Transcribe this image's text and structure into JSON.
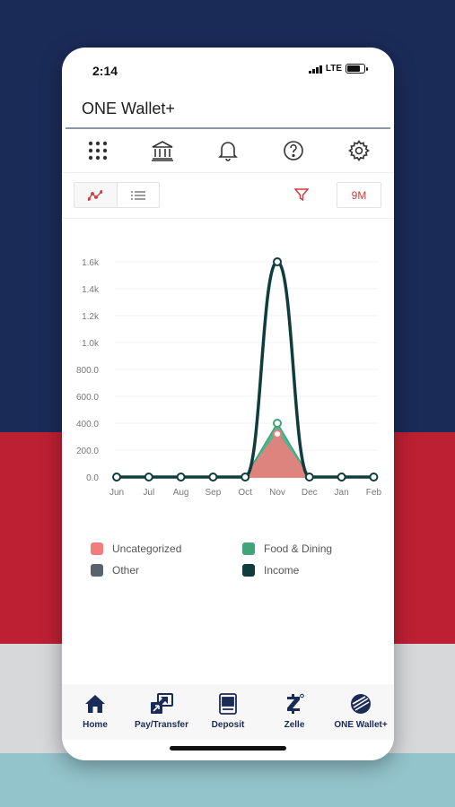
{
  "status_bar": {
    "time": "2:14",
    "network": "LTE"
  },
  "app": {
    "title": "ONE Wallet+"
  },
  "toolbar": {
    "icons": [
      "grid-icon",
      "bank-icon",
      "bell-icon",
      "help-icon",
      "gear-icon"
    ]
  },
  "controls": {
    "range_label": "9M",
    "accent_color": "#d33a3a"
  },
  "chart_data": {
    "type": "line",
    "categories": [
      "Jun",
      "Jul",
      "Aug",
      "Sep",
      "Oct",
      "Nov",
      "Dec",
      "Jan",
      "Feb"
    ],
    "y_tick_labels": [
      "0.0",
      "200.0",
      "400.0",
      "600.0",
      "800.0",
      "1.0k",
      "1.2k",
      "1.4k",
      "1.6k"
    ],
    "ylim": [
      0,
      1600
    ],
    "grid": true,
    "legend_position": "bottom",
    "series": [
      {
        "name": "Uncategorized",
        "color": "#f47b7b",
        "style": "area",
        "values": [
          0,
          0,
          0,
          0,
          0,
          320,
          0,
          0,
          0
        ]
      },
      {
        "name": "Food & Dining",
        "color": "#3fa47a",
        "style": "area",
        "values": [
          0,
          0,
          0,
          0,
          0,
          400,
          0,
          0,
          0
        ]
      },
      {
        "name": "Other",
        "color": "#5a6270",
        "style": "area",
        "values": [
          0,
          0,
          0,
          0,
          0,
          0,
          0,
          0,
          0
        ]
      },
      {
        "name": "Income",
        "color": "#0f3d3e",
        "style": "line",
        "values": [
          0,
          0,
          0,
          0,
          0,
          1600,
          0,
          0,
          0
        ]
      }
    ]
  },
  "legend": {
    "items": [
      {
        "label": "Uncategorized",
        "color": "#f47b7b"
      },
      {
        "label": "Food & Dining",
        "color": "#3fa47a"
      },
      {
        "label": "Other",
        "color": "#5a6270"
      },
      {
        "label": "Income",
        "color": "#0f3d3e"
      }
    ]
  },
  "bottom_nav": {
    "items": [
      {
        "label": "Home",
        "icon": "home-icon"
      },
      {
        "label": "Pay/Transfer",
        "icon": "pay-transfer-icon"
      },
      {
        "label": "Deposit",
        "icon": "deposit-icon"
      },
      {
        "label": "Zelle",
        "icon": "zelle-icon"
      },
      {
        "label": "ONE Wallet+",
        "icon": "one-wallet-icon"
      }
    ]
  }
}
